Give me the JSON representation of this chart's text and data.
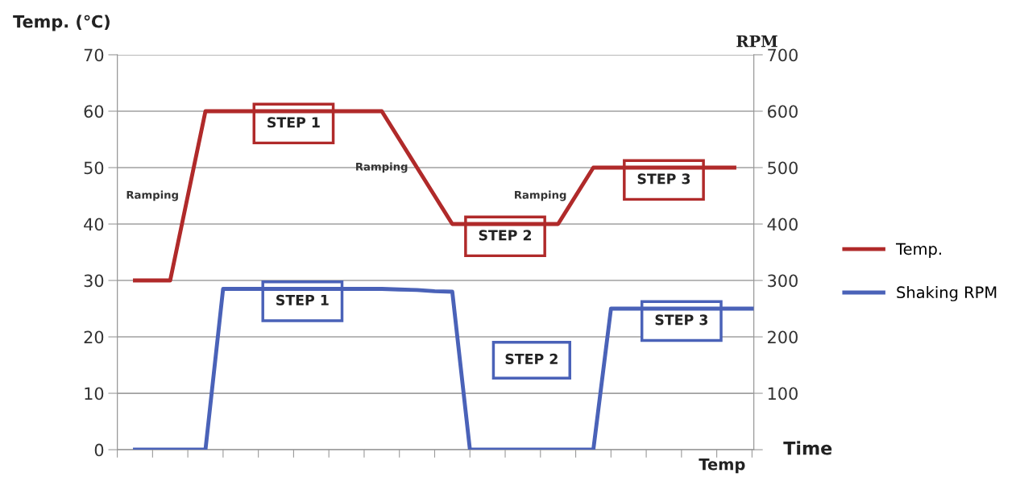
{
  "chart_data": {
    "type": "line",
    "ylabel": "Temp. (℃)",
    "y2label": "RPM",
    "xlabel": "Time",
    "categories": [
      null,
      null,
      null,
      null,
      null,
      null,
      null,
      null,
      null,
      null,
      null,
      null,
      null,
      null,
      null,
      null,
      null,
      null,
      null,
      null,
      null,
      null,
      null,
      null,
      null,
      null,
      null,
      null,
      null,
      null,
      null,
      null,
      null,
      null,
      null,
      null,
      null
    ],
    "ylim": [
      0,
      70
    ],
    "yticks": [
      0,
      10,
      20,
      30,
      40,
      50,
      60,
      70
    ],
    "y2lim": [
      0,
      700
    ],
    "y2ticks": [
      {
        "value": 0,
        "label": null
      },
      100,
      200,
      300,
      400,
      500,
      600,
      700
    ],
    "grid": "y",
    "legend": "right",
    "line_style": "solid",
    "marker": "none",
    "series": [
      {
        "name": "Temp.",
        "color": "#b02a2a",
        "values": [
          null,
          30,
          30,
          30,
          45,
          60,
          60,
          60,
          60,
          60,
          60,
          60,
          60,
          60,
          60,
          60,
          55,
          50,
          45,
          40,
          40,
          40,
          40,
          40,
          40,
          40,
          45,
          50,
          50,
          50,
          50,
          50,
          50,
          50,
          50,
          50,
          null
        ]
      },
      {
        "name": "Shaking RPM",
        "color": "#4a62b8",
        "axis": "y2",
        "values": [
          null,
          0,
          0,
          0,
          0,
          0,
          285,
          285,
          285,
          285,
          285,
          285,
          285,
          285,
          285,
          285,
          284,
          283,
          281,
          280,
          0,
          0,
          0,
          0,
          0,
          0,
          0,
          0,
          250,
          250,
          250,
          250,
          250,
          250,
          250,
          250,
          250
        ]
      }
    ],
    "annotations": [
      "STEP 1",
      "STEP 2",
      "STEP 3",
      "STEP 1",
      "STEP 2",
      "STEP 3",
      "Ramping",
      "Ramping",
      "Ramping",
      "Temp"
    ]
  }
}
